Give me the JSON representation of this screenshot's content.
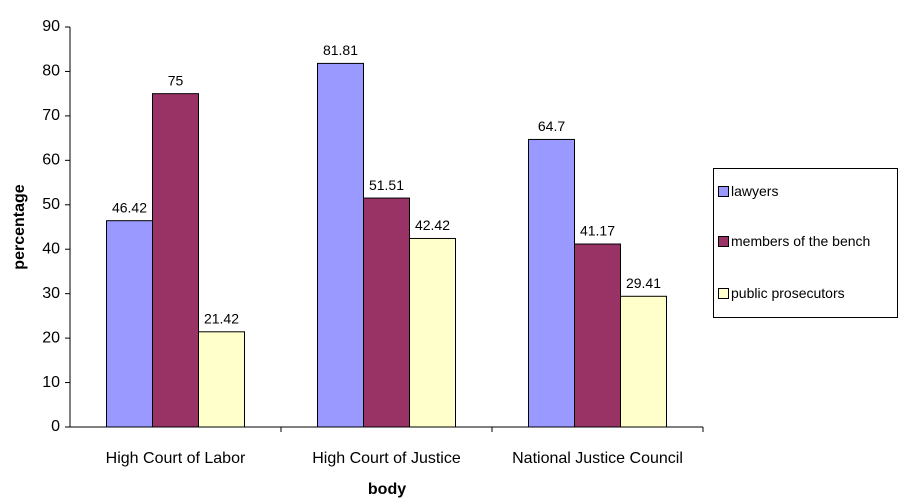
{
  "chart_data": {
    "type": "bar",
    "categories": [
      "High Court of Labor",
      "High Court of Justice",
      "National Justice Council"
    ],
    "series": [
      {
        "name": "lawyers",
        "color": "#9999ff",
        "values": [
          46.42,
          81.81,
          64.7
        ]
      },
      {
        "name": "members of the bench",
        "color": "#993366",
        "values": [
          75,
          51.51,
          41.17
        ]
      },
      {
        "name": "public prosecutors",
        "color": "#ffffcc",
        "values": [
          21.42,
          42.42,
          29.41
        ]
      }
    ],
    "y_label": "percentage",
    "x_label": "body",
    "ylim": [
      0,
      90
    ],
    "yticks": [
      0,
      10,
      20,
      30,
      40,
      50,
      60,
      70,
      80,
      90
    ],
    "grid": false,
    "legend": "right"
  }
}
